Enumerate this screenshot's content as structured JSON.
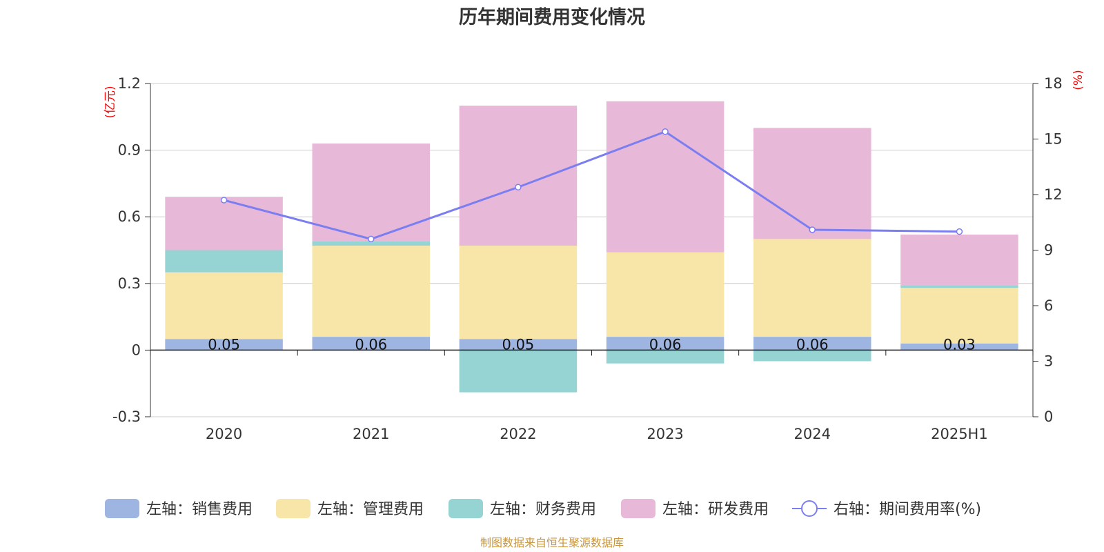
{
  "chart_data": {
    "type": "bar",
    "stacked": true,
    "title": "历年期间费用变化情况",
    "categories": [
      "2020",
      "2021",
      "2022",
      "2023",
      "2024",
      "2025H1"
    ],
    "y_left": {
      "unit_label": "(亿元)",
      "ylim": [
        -0.3,
        1.2
      ],
      "ticks": [
        "-0.3",
        "0",
        "0.3",
        "0.6",
        "0.9",
        "1.2"
      ],
      "tick_values": [
        -0.3,
        0,
        0.3,
        0.6,
        0.9,
        1.2
      ]
    },
    "y_right": {
      "unit_label": "(%)",
      "ylim": [
        0,
        18
      ],
      "ticks": [
        "0",
        "3",
        "6",
        "9",
        "12",
        "15",
        "18"
      ],
      "tick_values": [
        0,
        3,
        6,
        9,
        12,
        15,
        18
      ]
    },
    "series": [
      {
        "name": "左轴：销售费用",
        "axis": "left",
        "color": "#9db5e0",
        "values": [
          0.05,
          0.06,
          0.05,
          0.06,
          0.06,
          0.03
        ],
        "labels": [
          "0.05",
          "0.06",
          "0.05",
          "0.06",
          "0.06",
          "0.03"
        ]
      },
      {
        "name": "左轴：管理费用",
        "axis": "left",
        "color": "#f7e6a8",
        "values": [
          0.3,
          0.41,
          0.42,
          0.38,
          0.44,
          0.25
        ]
      },
      {
        "name": "左轴：财务费用",
        "axis": "left",
        "color": "#96d4d4",
        "values": [
          0.1,
          0.02,
          -0.19,
          -0.06,
          -0.05,
          0.01
        ]
      },
      {
        "name": "左轴：研发费用",
        "axis": "left",
        "color": "#e8b8d8",
        "values": [
          0.24,
          0.44,
          0.63,
          0.68,
          0.5,
          0.23
        ]
      },
      {
        "name": "右轴：期间费用率(%)",
        "axis": "right",
        "type": "line",
        "color": "#7b7ef0",
        "values": [
          11.7,
          9.6,
          12.4,
          15.4,
          10.1,
          10.0
        ]
      }
    ],
    "legend_position": "bottom",
    "grid": true,
    "source": "制图数据来自恒生聚源数据库"
  }
}
